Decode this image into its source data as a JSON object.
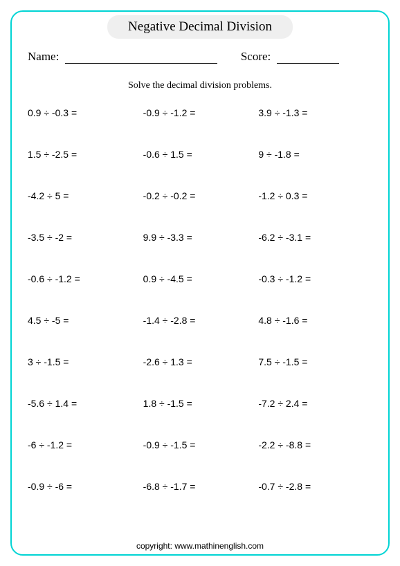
{
  "title": "Negative Decimal Division",
  "name_label": "Name:",
  "score_label": "Score:",
  "instruction": "Solve the decimal division problems.",
  "problems": {
    "rows": [
      [
        "0.9  ÷  -0.3  =",
        "-0.9  ÷  -1.2  =",
        "3.9  ÷  -1.3  ="
      ],
      [
        "1.5  ÷  -2.5  =",
        "-0.6  ÷  1.5  =",
        "9  ÷  -1.8  ="
      ],
      [
        "-4.2  ÷  5  =",
        "-0.2  ÷  -0.2  =",
        "-1.2  ÷  0.3  ="
      ],
      [
        "-3.5  ÷  -2  =",
        "9.9  ÷  -3.3  =",
        "-6.2  ÷  -3.1  ="
      ],
      [
        "-0.6 ÷  -1.2  =",
        "0.9  ÷  -4.5  =",
        "-0.3  ÷  -1.2  ="
      ],
      [
        "4.5  ÷  -5  =",
        "-1.4  ÷  -2.8  =",
        "4.8  ÷  -1.6  ="
      ],
      [
        "3  ÷  -1.5  =",
        "-2.6  ÷  1.3  =",
        "7.5  ÷  -1.5  ="
      ],
      [
        "-5.6 ÷  1.4  =",
        "1.8  ÷  -1.5  =",
        "-7.2  ÷  2.4  ="
      ],
      [
        "-6  ÷  -1.2  =",
        "-0.9 ÷ -1.5  =",
        "-2.2  ÷  -8.8  ="
      ],
      [
        "-0.9 ÷  -6  =",
        "-6.8  ÷  -1.7  =",
        "-0.7  ÷  -2.8  ="
      ]
    ]
  },
  "footer": "copyright:   www.mathinenglish.com",
  "style": {
    "border_color": "#00d4d4",
    "title_bg": "#efefef",
    "text_color": "#000000",
    "background_color": "#ffffff",
    "title_fontsize": 19,
    "label_fontsize": 17,
    "instruction_fontsize": 14,
    "problem_fontsize": 14,
    "footer_fontsize": 12,
    "columns": 3,
    "rows": 10
  }
}
